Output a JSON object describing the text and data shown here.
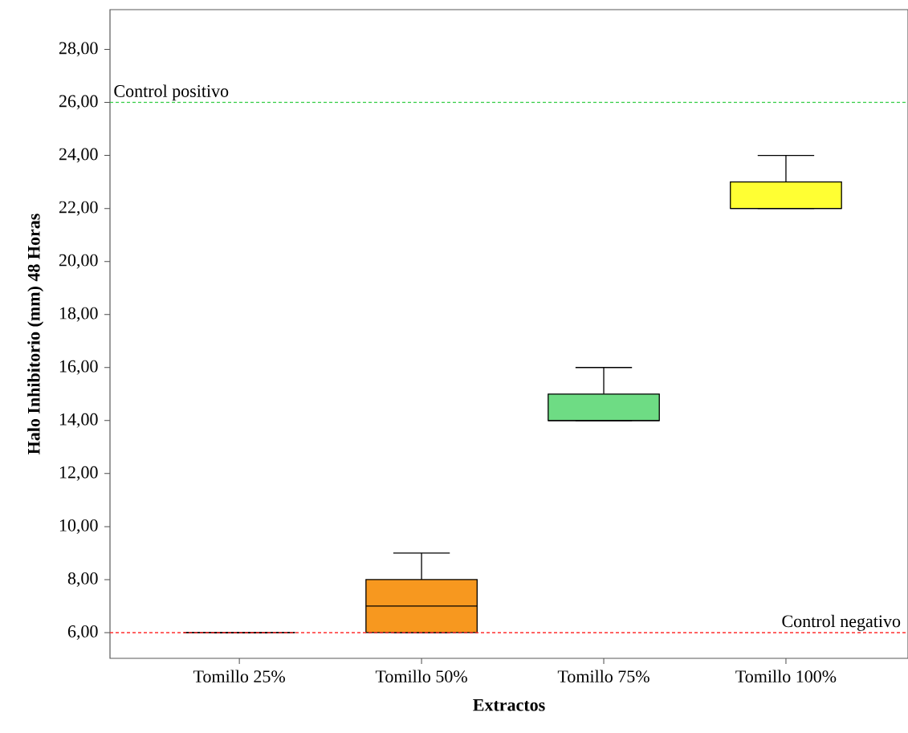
{
  "chart_data": {
    "type": "box",
    "xlabel": "Extractos",
    "ylabel": "Halo Inhibitorio (mm) 48 Horas",
    "categories": [
      "Tomillo 25%",
      "Tomillo 50%",
      "Tomillo 75%",
      "Tomillo 100%"
    ],
    "boxes": [
      {
        "low": 6,
        "q1": 6,
        "median": 6,
        "q3": 6,
        "high": 6
      },
      {
        "low": 6,
        "q1": 6,
        "median": 7,
        "q3": 8,
        "high": 9
      },
      {
        "low": 14,
        "q1": 14,
        "median": 14,
        "q3": 15,
        "high": 16
      },
      {
        "low": 22,
        "q1": 22,
        "median": 22,
        "q3": 23,
        "high": 24
      }
    ],
    "colors": [
      "#000000",
      "#f7981f",
      "#6edc84",
      "#ffff33"
    ],
    "ylim": [
      5.03,
      29.5
    ],
    "yticks": [
      {
        "value": 6,
        "label": "6,00"
      },
      {
        "value": 8,
        "label": "8,00"
      },
      {
        "value": 10,
        "label": "10,00"
      },
      {
        "value": 12,
        "label": "12,00"
      },
      {
        "value": 14,
        "label": "14,00"
      },
      {
        "value": 16,
        "label": "16,00"
      },
      {
        "value": 18,
        "label": "18,00"
      },
      {
        "value": 20,
        "label": "20,00"
      },
      {
        "value": 22,
        "label": "22,00"
      },
      {
        "value": 24,
        "label": "24,00"
      },
      {
        "value": 26,
        "label": "26,00"
      },
      {
        "value": 28,
        "label": "28,00"
      }
    ],
    "ref_lines": [
      {
        "axis": "y",
        "value": 26,
        "label": "Control positivo",
        "color": "#33cc44",
        "line_style": "dashed"
      },
      {
        "axis": "y",
        "value": 6,
        "label": "Control negativo",
        "color": "#ff3030",
        "line_style": "dashed"
      }
    ],
    "grid": false
  }
}
